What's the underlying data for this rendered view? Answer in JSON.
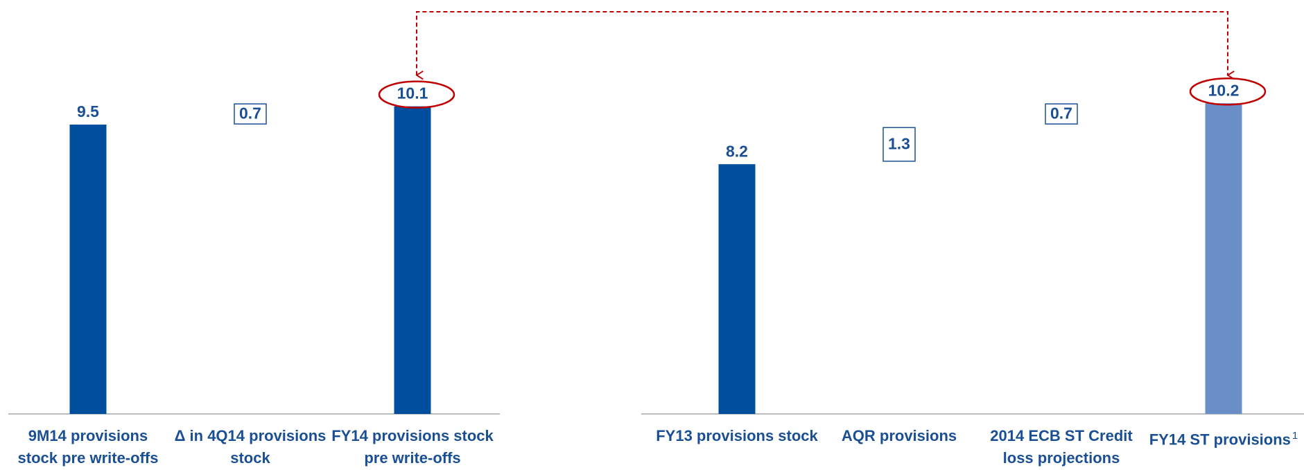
{
  "chart_data": [
    {
      "type": "waterfall",
      "categories": [
        "9M14 provisions stock pre write-offs",
        "Δ in 4Q14 provisions stock",
        "FY14 provisions stock pre write-offs"
      ],
      "values": [
        9.5,
        0.7,
        10.1
      ],
      "bar_types": [
        "total",
        "increase",
        "total"
      ],
      "colors": [
        "#004f9f",
        "none",
        "#004f9f"
      ],
      "ylim": [
        0,
        11
      ]
    },
    {
      "type": "waterfall",
      "categories": [
        "FY13 provisions stock",
        "AQR provisions",
        "2014 ECB ST Credit loss projections",
        "FY14 ST provisions"
      ],
      "footnote_mark": "1",
      "values": [
        8.2,
        1.3,
        0.7,
        10.2
      ],
      "bar_types": [
        "total",
        "increase",
        "increase",
        "total"
      ],
      "colors": [
        "#004f9f",
        "none",
        "none",
        "#6a8fc7"
      ],
      "ylim": [
        0,
        11
      ]
    }
  ]
}
